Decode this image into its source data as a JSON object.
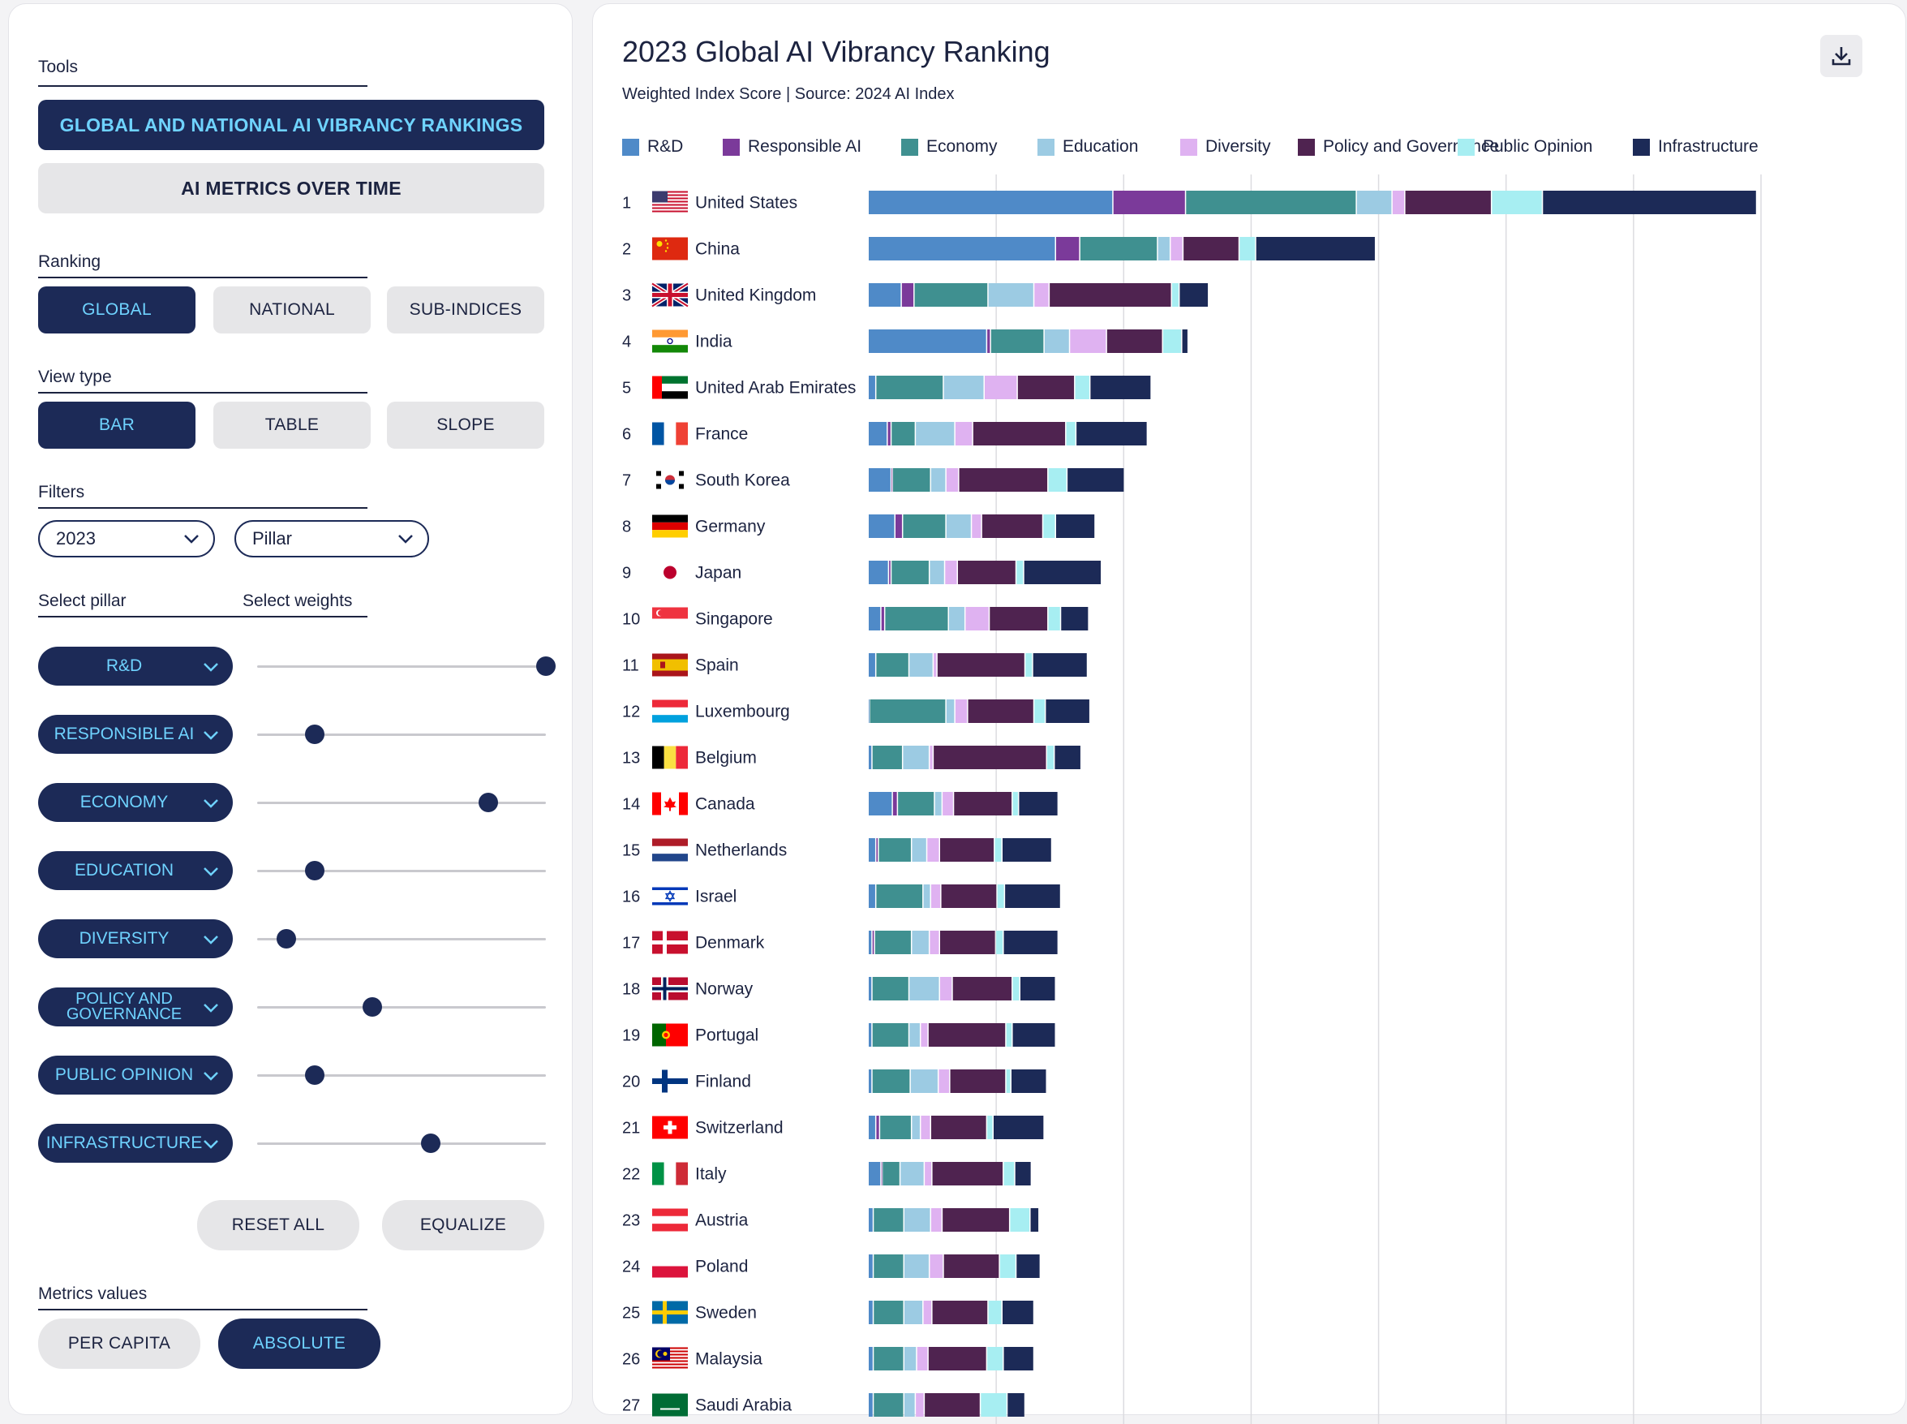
{
  "sidebar": {
    "tools_label": "Tools",
    "tool_buttons": [
      "GLOBAL AND NATIONAL AI VIBRANCY RANKINGS",
      "AI METRICS OVER TIME"
    ],
    "ranking_label": "Ranking",
    "ranking_options": [
      "GLOBAL",
      "NATIONAL",
      "SUB-INDICES"
    ],
    "view_type_label": "View type",
    "view_options": [
      "BAR",
      "TABLE",
      "SLOPE"
    ],
    "filters_label": "Filters",
    "year_value": "2023",
    "pillar_filter_value": "Pillar",
    "select_pillar_label": "Select pillar",
    "select_weights_label": "Select weights",
    "pillars": [
      {
        "label": "R&D",
        "weight": 1.0
      },
      {
        "label": "RESPONSIBLE AI",
        "weight": 0.2
      },
      {
        "label": "ECONOMY",
        "weight": 0.8
      },
      {
        "label": "EDUCATION",
        "weight": 0.2
      },
      {
        "label": "DIVERSITY",
        "weight": 0.1
      },
      {
        "label": "POLICY AND GOVERNANCE",
        "weight": 0.4
      },
      {
        "label": "PUBLIC OPINION",
        "weight": 0.2
      },
      {
        "label": "INFRASTRUCTURE",
        "weight": 0.6
      }
    ],
    "reset_label": "RESET ALL",
    "equalize_label": "EQUALIZE",
    "metrics_label": "Metrics values",
    "metric_options": [
      "PER CAPITA",
      "ABSOLUTE"
    ]
  },
  "chart": {
    "title": "2023 Global AI Vibrancy Ranking",
    "subtitle": "Weighted Index Score | Source: 2024 AI Index",
    "download_icon": "download-icon"
  },
  "chart_data": {
    "type": "bar",
    "stacked": true,
    "orientation": "horizontal",
    "title": "2023 Global AI Vibrancy Ranking",
    "xlim": [
      0,
      70
    ],
    "grid": true,
    "series": [
      {
        "name": "R&D",
        "color": "#4f8ac8"
      },
      {
        "name": "Responsible AI",
        "color": "#7b3a9a"
      },
      {
        "name": "Economy",
        "color": "#3f9090"
      },
      {
        "name": "Education",
        "color": "#9ccbe3"
      },
      {
        "name": "Diversity",
        "color": "#dfb2f1"
      },
      {
        "name": "Policy and Governance",
        "color": "#4f2350"
      },
      {
        "name": "Public Opinion",
        "color": "#a7eef2"
      },
      {
        "name": "Infrastructure",
        "color": "#1c2a57"
      }
    ],
    "rows": [
      {
        "rank": "1",
        "country": "United States",
        "flag": "us",
        "values": [
          19.2,
          5.7,
          13.4,
          2.8,
          1.0,
          6.8,
          4.0,
          16.8
        ]
      },
      {
        "rank": "2",
        "country": "China",
        "flag": "cn",
        "values": [
          14.7,
          1.9,
          6.1,
          1.0,
          1.0,
          4.4,
          1.3,
          9.4
        ]
      },
      {
        "rank": "3",
        "country": "United Kingdom",
        "flag": "gb",
        "values": [
          2.6,
          1.0,
          5.8,
          3.6,
          1.2,
          9.6,
          0.6,
          2.3
        ]
      },
      {
        "rank": "4",
        "country": "India",
        "flag": "in",
        "values": [
          9.3,
          0.3,
          4.2,
          2.0,
          2.9,
          4.4,
          1.5,
          0.5
        ]
      },
      {
        "rank": "5",
        "country": "United Arab Emirates",
        "flag": "ae",
        "values": [
          0.6,
          0.0,
          5.3,
          3.2,
          2.6,
          4.5,
          1.2,
          4.8
        ]
      },
      {
        "rank": "6",
        "country": "France",
        "flag": "fr",
        "values": [
          1.5,
          0.3,
          1.9,
          3.1,
          1.4,
          7.3,
          0.8,
          5.6
        ]
      },
      {
        "rank": "7",
        "country": "South Korea",
        "flag": "kr",
        "values": [
          1.8,
          0.1,
          3.0,
          1.2,
          1.0,
          7.0,
          1.5,
          4.5
        ]
      },
      {
        "rank": "8",
        "country": "Germany",
        "flag": "de",
        "values": [
          2.1,
          0.6,
          3.4,
          2.0,
          0.8,
          4.8,
          1.0,
          3.1
        ]
      },
      {
        "rank": "9",
        "country": "Japan",
        "flag": "jp",
        "values": [
          1.6,
          0.2,
          3.0,
          1.2,
          1.0,
          4.6,
          0.6,
          6.1
        ]
      },
      {
        "rank": "10",
        "country": "Singapore",
        "flag": "sg",
        "values": [
          1.0,
          0.3,
          5.0,
          1.3,
          1.9,
          4.6,
          1.0,
          2.2
        ]
      },
      {
        "rank": "11",
        "country": "Spain",
        "flag": "es",
        "values": [
          0.6,
          0.0,
          2.6,
          1.9,
          0.3,
          6.9,
          0.6,
          4.3
        ]
      },
      {
        "rank": "12",
        "country": "Luxembourg",
        "flag": "lu",
        "values": [
          0.1,
          0.0,
          6.0,
          0.7,
          1.0,
          5.2,
          0.9,
          3.5
        ]
      },
      {
        "rank": "13",
        "country": "Belgium",
        "flag": "be",
        "values": [
          0.3,
          0.0,
          2.4,
          2.1,
          0.3,
          8.9,
          0.6,
          2.1
        ]
      },
      {
        "rank": "14",
        "country": "Canada",
        "flag": "ca",
        "values": [
          1.9,
          0.4,
          2.9,
          0.6,
          0.9,
          4.6,
          0.5,
          3.1
        ]
      },
      {
        "rank": "15",
        "country": "Netherlands",
        "flag": "nl",
        "values": [
          0.6,
          0.2,
          2.6,
          1.2,
          1.0,
          4.3,
          0.6,
          3.9
        ]
      },
      {
        "rank": "16",
        "country": "Israel",
        "flag": "il",
        "values": [
          0.6,
          0.0,
          3.7,
          0.6,
          0.8,
          4.4,
          0.6,
          4.4
        ]
      },
      {
        "rank": "17",
        "country": "Denmark",
        "flag": "dk",
        "values": [
          0.3,
          0.2,
          2.9,
          1.4,
          0.8,
          4.4,
          0.6,
          4.3
        ]
      },
      {
        "rank": "18",
        "country": "Norway",
        "flag": "no",
        "values": [
          0.3,
          0.0,
          2.9,
          2.4,
          1.0,
          4.7,
          0.6,
          2.8
        ]
      },
      {
        "rank": "19",
        "country": "Portugal",
        "flag": "pt",
        "values": [
          0.3,
          0.0,
          2.9,
          0.9,
          0.6,
          6.1,
          0.5,
          3.4
        ]
      },
      {
        "rank": "20",
        "country": "Finland",
        "flag": "fi",
        "values": [
          0.3,
          0.0,
          3.0,
          2.2,
          0.9,
          4.4,
          0.4,
          2.8
        ]
      },
      {
        "rank": "21",
        "country": "Switzerland",
        "flag": "ch",
        "values": [
          0.6,
          0.3,
          2.5,
          0.7,
          0.8,
          4.4,
          0.5,
          4.0
        ]
      },
      {
        "rank": "22",
        "country": "Italy",
        "flag": "it",
        "values": [
          1.0,
          0.1,
          1.4,
          1.9,
          0.6,
          5.6,
          0.9,
          1.3
        ]
      },
      {
        "rank": "23",
        "country": "Austria",
        "flag": "at",
        "values": [
          0.4,
          0.0,
          2.4,
          2.1,
          0.9,
          5.3,
          1.6,
          0.7
        ]
      },
      {
        "rank": "24",
        "country": "Poland",
        "flag": "pl",
        "values": [
          0.4,
          0.0,
          2.4,
          2.0,
          1.1,
          4.4,
          1.3,
          1.9
        ]
      },
      {
        "rank": "25",
        "country": "Sweden",
        "flag": "se",
        "values": [
          0.4,
          0.0,
          2.4,
          1.5,
          0.7,
          4.4,
          1.1,
          2.5
        ]
      },
      {
        "rank": "26",
        "country": "Malaysia",
        "flag": "my",
        "values": [
          0.4,
          0.0,
          2.4,
          1.0,
          0.9,
          4.6,
          1.3,
          2.4
        ]
      },
      {
        "rank": "27",
        "country": "Saudi Arabia",
        "flag": "sa",
        "values": [
          0.4,
          0.0,
          2.4,
          0.9,
          0.7,
          4.4,
          2.1,
          1.4
        ]
      }
    ]
  }
}
